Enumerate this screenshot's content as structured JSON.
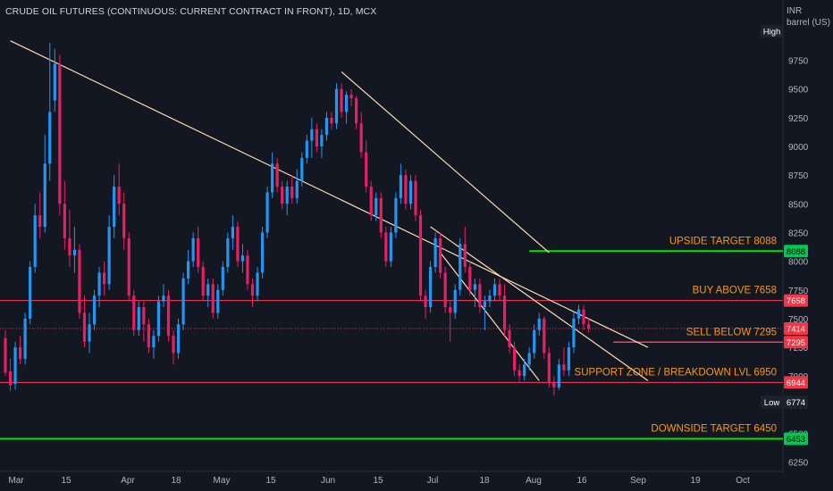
{
  "window": {
    "title": "CRUDE OIL FUTURES (CONTINUOUS: CURRENT CONTRACT IN FRONT), 1D, MCX",
    "currency": "INR",
    "unit": "barrel (US)"
  },
  "colors": {
    "background": "#131722",
    "up": "#2196f3",
    "down": "#e91e63",
    "green_line": "#00e600",
    "red_line": "#ff3a5a",
    "trend_line": "#ffdcb4",
    "annotation_text": "#ff9800",
    "axis_text": "#b2b5be"
  },
  "chart_data": {
    "type": "candlestick",
    "title": "CRUDE OIL FUTURES (CONTINUOUS: CURRENT CONTRACT IN FRONT), 1D, MCX",
    "ylim": [
      6050,
      10200
    ],
    "y_ticks": [
      6250,
      6500,
      6750,
      7000,
      7250,
      7500,
      7750,
      8000,
      8250,
      8500,
      8750,
      9000,
      9250,
      9500,
      9750
    ],
    "x_ticks": [
      "Mar",
      "15",
      "Apr",
      "18",
      "May",
      "15",
      "Jun",
      "15",
      "Jul",
      "18",
      "Aug",
      "16",
      "Sep",
      "19",
      "Oct"
    ],
    "grid": false,
    "candles": [
      {
        "o": 7330,
        "h": 7400,
        "l": 7000,
        "c": 7030
      },
      {
        "o": 7040,
        "h": 7150,
        "l": 6870,
        "c": 6920
      },
      {
        "o": 6930,
        "h": 7300,
        "l": 6880,
        "c": 7250
      },
      {
        "o": 7250,
        "h": 7350,
        "l": 7100,
        "c": 7150
      },
      {
        "o": 7150,
        "h": 7550,
        "l": 7100,
        "c": 7500
      },
      {
        "o": 7500,
        "h": 8000,
        "l": 7450,
        "c": 7950
      },
      {
        "o": 7950,
        "h": 8500,
        "l": 7900,
        "c": 8400
      },
      {
        "o": 8400,
        "h": 8600,
        "l": 8200,
        "c": 8300
      },
      {
        "o": 8300,
        "h": 9100,
        "l": 8250,
        "c": 8850
      },
      {
        "o": 8850,
        "h": 9900,
        "l": 8700,
        "c": 9300
      },
      {
        "o": 9400,
        "h": 9850,
        "l": 9300,
        "c": 9720
      },
      {
        "o": 9720,
        "h": 9800,
        "l": 8400,
        "c": 8500
      },
      {
        "o": 8500,
        "h": 8700,
        "l": 8100,
        "c": 8200
      },
      {
        "o": 8200,
        "h": 8450,
        "l": 7950,
        "c": 8050
      },
      {
        "o": 8050,
        "h": 8300,
        "l": 7900,
        "c": 8100
      },
      {
        "o": 8100,
        "h": 8150,
        "l": 7500,
        "c": 7550
      },
      {
        "o": 7550,
        "h": 7700,
        "l": 7250,
        "c": 7300
      },
      {
        "o": 7300,
        "h": 7550,
        "l": 7200,
        "c": 7450
      },
      {
        "o": 7450,
        "h": 7750,
        "l": 7400,
        "c": 7700
      },
      {
        "o": 7700,
        "h": 7950,
        "l": 7600,
        "c": 7900
      },
      {
        "o": 7900,
        "h": 8000,
        "l": 7700,
        "c": 7800
      },
      {
        "o": 7800,
        "h": 8400,
        "l": 7750,
        "c": 8300
      },
      {
        "o": 8300,
        "h": 8750,
        "l": 8200,
        "c": 8650
      },
      {
        "o": 8650,
        "h": 8850,
        "l": 8400,
        "c": 8500
      },
      {
        "o": 8500,
        "h": 8600,
        "l": 8100,
        "c": 8200
      },
      {
        "o": 8200,
        "h": 8250,
        "l": 7650,
        "c": 7700
      },
      {
        "o": 7700,
        "h": 7750,
        "l": 7350,
        "c": 7400
      },
      {
        "o": 7400,
        "h": 7650,
        "l": 7350,
        "c": 7600
      },
      {
        "o": 7600,
        "h": 7650,
        "l": 7300,
        "c": 7450
      },
      {
        "o": 7450,
        "h": 7500,
        "l": 7200,
        "c": 7250
      },
      {
        "o": 7250,
        "h": 7400,
        "l": 7150,
        "c": 7350
      },
      {
        "o": 7350,
        "h": 7700,
        "l": 7300,
        "c": 7650
      },
      {
        "o": 7650,
        "h": 7800,
        "l": 7600,
        "c": 7700
      },
      {
        "o": 7700,
        "h": 7750,
        "l": 7300,
        "c": 7350
      },
      {
        "o": 7350,
        "h": 7400,
        "l": 7100,
        "c": 7200
      },
      {
        "o": 7200,
        "h": 7500,
        "l": 7150,
        "c": 7450
      },
      {
        "o": 7450,
        "h": 7900,
        "l": 7400,
        "c": 7850
      },
      {
        "o": 7850,
        "h": 8100,
        "l": 7800,
        "c": 8000
      },
      {
        "o": 8000,
        "h": 8250,
        "l": 7950,
        "c": 8200
      },
      {
        "o": 8200,
        "h": 8300,
        "l": 7900,
        "c": 7950
      },
      {
        "o": 7950,
        "h": 8000,
        "l": 7650,
        "c": 7700
      },
      {
        "o": 7700,
        "h": 7850,
        "l": 7600,
        "c": 7800
      },
      {
        "o": 7800,
        "h": 7850,
        "l": 7500,
        "c": 7550
      },
      {
        "o": 7550,
        "h": 7800,
        "l": 7500,
        "c": 7750
      },
      {
        "o": 7750,
        "h": 8000,
        "l": 7700,
        "c": 7950
      },
      {
        "o": 7950,
        "h": 8250,
        "l": 7900,
        "c": 8200
      },
      {
        "o": 8200,
        "h": 8400,
        "l": 8100,
        "c": 8300
      },
      {
        "o": 8300,
        "h": 8350,
        "l": 7950,
        "c": 8000
      },
      {
        "o": 8000,
        "h": 8150,
        "l": 7900,
        "c": 8050
      },
      {
        "o": 8050,
        "h": 8100,
        "l": 7750,
        "c": 7800
      },
      {
        "o": 7800,
        "h": 7850,
        "l": 7600,
        "c": 7700
      },
      {
        "o": 7700,
        "h": 7950,
        "l": 7650,
        "c": 7900
      },
      {
        "o": 7900,
        "h": 8300,
        "l": 7850,
        "c": 8250
      },
      {
        "o": 8250,
        "h": 8650,
        "l": 8200,
        "c": 8600
      },
      {
        "o": 8600,
        "h": 8950,
        "l": 8550,
        "c": 8850
      },
      {
        "o": 8850,
        "h": 8900,
        "l": 8600,
        "c": 8650
      },
      {
        "o": 8650,
        "h": 8700,
        "l": 8450,
        "c": 8500
      },
      {
        "o": 8500,
        "h": 8700,
        "l": 8400,
        "c": 8650
      },
      {
        "o": 8650,
        "h": 8750,
        "l": 8500,
        "c": 8550
      },
      {
        "o": 8550,
        "h": 8800,
        "l": 8500,
        "c": 8700
      },
      {
        "o": 8700,
        "h": 8950,
        "l": 8650,
        "c": 8900
      },
      {
        "o": 8900,
        "h": 9100,
        "l": 8850,
        "c": 9050
      },
      {
        "o": 9050,
        "h": 9250,
        "l": 8900,
        "c": 9150
      },
      {
        "o": 9150,
        "h": 9200,
        "l": 8950,
        "c": 9000
      },
      {
        "o": 9000,
        "h": 9150,
        "l": 8900,
        "c": 9100
      },
      {
        "o": 9100,
        "h": 9300,
        "l": 9050,
        "c": 9250
      },
      {
        "o": 9250,
        "h": 9300,
        "l": 9150,
        "c": 9200
      },
      {
        "o": 9200,
        "h": 9550,
        "l": 9150,
        "c": 9500
      },
      {
        "o": 9500,
        "h": 9550,
        "l": 9250,
        "c": 9300
      },
      {
        "o": 9300,
        "h": 9480,
        "l": 9200,
        "c": 9450
      },
      {
        "o": 9450,
        "h": 9500,
        "l": 9350,
        "c": 9420
      },
      {
        "o": 9420,
        "h": 9440,
        "l": 9150,
        "c": 9200
      },
      {
        "o": 9200,
        "h": 9300,
        "l": 8900,
        "c": 8950
      },
      {
        "o": 8950,
        "h": 9050,
        "l": 8600,
        "c": 8650
      },
      {
        "o": 8650,
        "h": 8700,
        "l": 8350,
        "c": 8400
      },
      {
        "o": 8400,
        "h": 8600,
        "l": 8350,
        "c": 8550
      },
      {
        "o": 8550,
        "h": 8600,
        "l": 8200,
        "c": 8250
      },
      {
        "o": 8250,
        "h": 8300,
        "l": 7950,
        "c": 8000
      },
      {
        "o": 8000,
        "h": 8300,
        "l": 7950,
        "c": 8250
      },
      {
        "o": 8250,
        "h": 8600,
        "l": 8200,
        "c": 8550
      },
      {
        "o": 8550,
        "h": 8850,
        "l": 8500,
        "c": 8750
      },
      {
        "o": 8750,
        "h": 8800,
        "l": 8450,
        "c": 8500
      },
      {
        "o": 8500,
        "h": 8750,
        "l": 8450,
        "c": 8700
      },
      {
        "o": 8700,
        "h": 8750,
        "l": 8350,
        "c": 8400
      },
      {
        "o": 8400,
        "h": 8450,
        "l": 7650,
        "c": 7700
      },
      {
        "o": 7700,
        "h": 7750,
        "l": 7500,
        "c": 7600
      },
      {
        "o": 7600,
        "h": 8000,
        "l": 7550,
        "c": 7950
      },
      {
        "o": 7950,
        "h": 8250,
        "l": 7900,
        "c": 8200
      },
      {
        "o": 8200,
        "h": 8250,
        "l": 7850,
        "c": 7900
      },
      {
        "o": 7900,
        "h": 7950,
        "l": 7550,
        "c": 7600
      },
      {
        "o": 7600,
        "h": 7650,
        "l": 7300,
        "c": 7550
      },
      {
        "o": 7550,
        "h": 7800,
        "l": 7500,
        "c": 7750
      },
      {
        "o": 7750,
        "h": 8200,
        "l": 7700,
        "c": 8150
      },
      {
        "o": 8150,
        "h": 8300,
        "l": 7900,
        "c": 7950
      },
      {
        "o": 7950,
        "h": 8000,
        "l": 7700,
        "c": 7750
      },
      {
        "o": 7750,
        "h": 7850,
        "l": 7600,
        "c": 7800
      },
      {
        "o": 7800,
        "h": 7850,
        "l": 7550,
        "c": 7600
      },
      {
        "o": 7600,
        "h": 7700,
        "l": 7400,
        "c": 7650
      },
      {
        "o": 7650,
        "h": 7750,
        "l": 7600,
        "c": 7700
      },
      {
        "o": 7700,
        "h": 7850,
        "l": 7650,
        "c": 7800
      },
      {
        "o": 7800,
        "h": 7850,
        "l": 7650,
        "c": 7700
      },
      {
        "o": 7700,
        "h": 7800,
        "l": 7350,
        "c": 7400
      },
      {
        "o": 7400,
        "h": 7450,
        "l": 7200,
        "c": 7250
      },
      {
        "o": 7250,
        "h": 7300,
        "l": 7000,
        "c": 7050
      },
      {
        "o": 7050,
        "h": 7100,
        "l": 6950,
        "c": 7000
      },
      {
        "o": 7000,
        "h": 7150,
        "l": 6960,
        "c": 7100
      },
      {
        "o": 7100,
        "h": 7250,
        "l": 7050,
        "c": 7200
      },
      {
        "o": 7200,
        "h": 7450,
        "l": 7150,
        "c": 7400
      },
      {
        "o": 7400,
        "h": 7550,
        "l": 7350,
        "c": 7500
      },
      {
        "o": 7500,
        "h": 7520,
        "l": 7150,
        "c": 7200
      },
      {
        "o": 7200,
        "h": 7250,
        "l": 6900,
        "c": 6950
      },
      {
        "o": 6950,
        "h": 7000,
        "l": 6830,
        "c": 6900
      },
      {
        "o": 6900,
        "h": 7150,
        "l": 6880,
        "c": 7100
      },
      {
        "o": 7100,
        "h": 7250,
        "l": 7000,
        "c": 7050
      },
      {
        "o": 7050,
        "h": 7300,
        "l": 7000,
        "c": 7250
      },
      {
        "o": 7250,
        "h": 7550,
        "l": 7200,
        "c": 7500
      },
      {
        "o": 7500,
        "h": 7620,
        "l": 7450,
        "c": 7580
      },
      {
        "o": 7580,
        "h": 7620,
        "l": 7400,
        "c": 7450
      },
      {
        "o": 7450,
        "h": 7500,
        "l": 7380,
        "c": 7414
      }
    ],
    "annotations": {
      "upside_target": "UPSIDE TARGET 8088",
      "buy_above": "BUY ABOVE 7658",
      "sell_below": "SELL BELOW 7295",
      "support": "SUPPORT ZONE / BREAKDOWN LVL 6950",
      "downside_target": "DOWNSIDE TARGET 6450"
    },
    "hlines": [
      {
        "value": 8088,
        "kind": "green"
      },
      {
        "value": 7658,
        "kind": "red"
      },
      {
        "value": 7414,
        "kind": "dotted"
      },
      {
        "value": 6944,
        "kind": "red"
      },
      {
        "value": 6453,
        "kind": "green"
      }
    ],
    "trendlines": [
      {
        "from": [
          1,
          9920
        ],
        "to": [
          130,
          7250
        ]
      },
      {
        "from": [
          68,
          9650
        ],
        "to": [
          110,
          8075
        ]
      },
      {
        "from": [
          88,
          8075
        ],
        "to": [
          108,
          6960
        ]
      },
      {
        "from": [
          86,
          8300
        ],
        "to": [
          130,
          6960
        ]
      }
    ],
    "price_labels": [
      {
        "text": "High",
        "value": 9930,
        "kind": "dark"
      },
      {
        "text": "8088",
        "value": 8088,
        "kind": "green"
      },
      {
        "text": "7658",
        "value": 7658,
        "kind": "red"
      },
      {
        "text": "7414",
        "value": 7414,
        "kind": "red"
      },
      {
        "text": "7295",
        "value": 7295,
        "kind": "red"
      },
      {
        "text": "6944",
        "value": 6944,
        "kind": "red"
      },
      {
        "text": "Low",
        "value": 6774,
        "kind": "dark"
      },
      {
        "text": "6774",
        "value": 6774,
        "kind": "dark"
      },
      {
        "text": "6453",
        "value": 6453,
        "kind": "green"
      }
    ]
  }
}
